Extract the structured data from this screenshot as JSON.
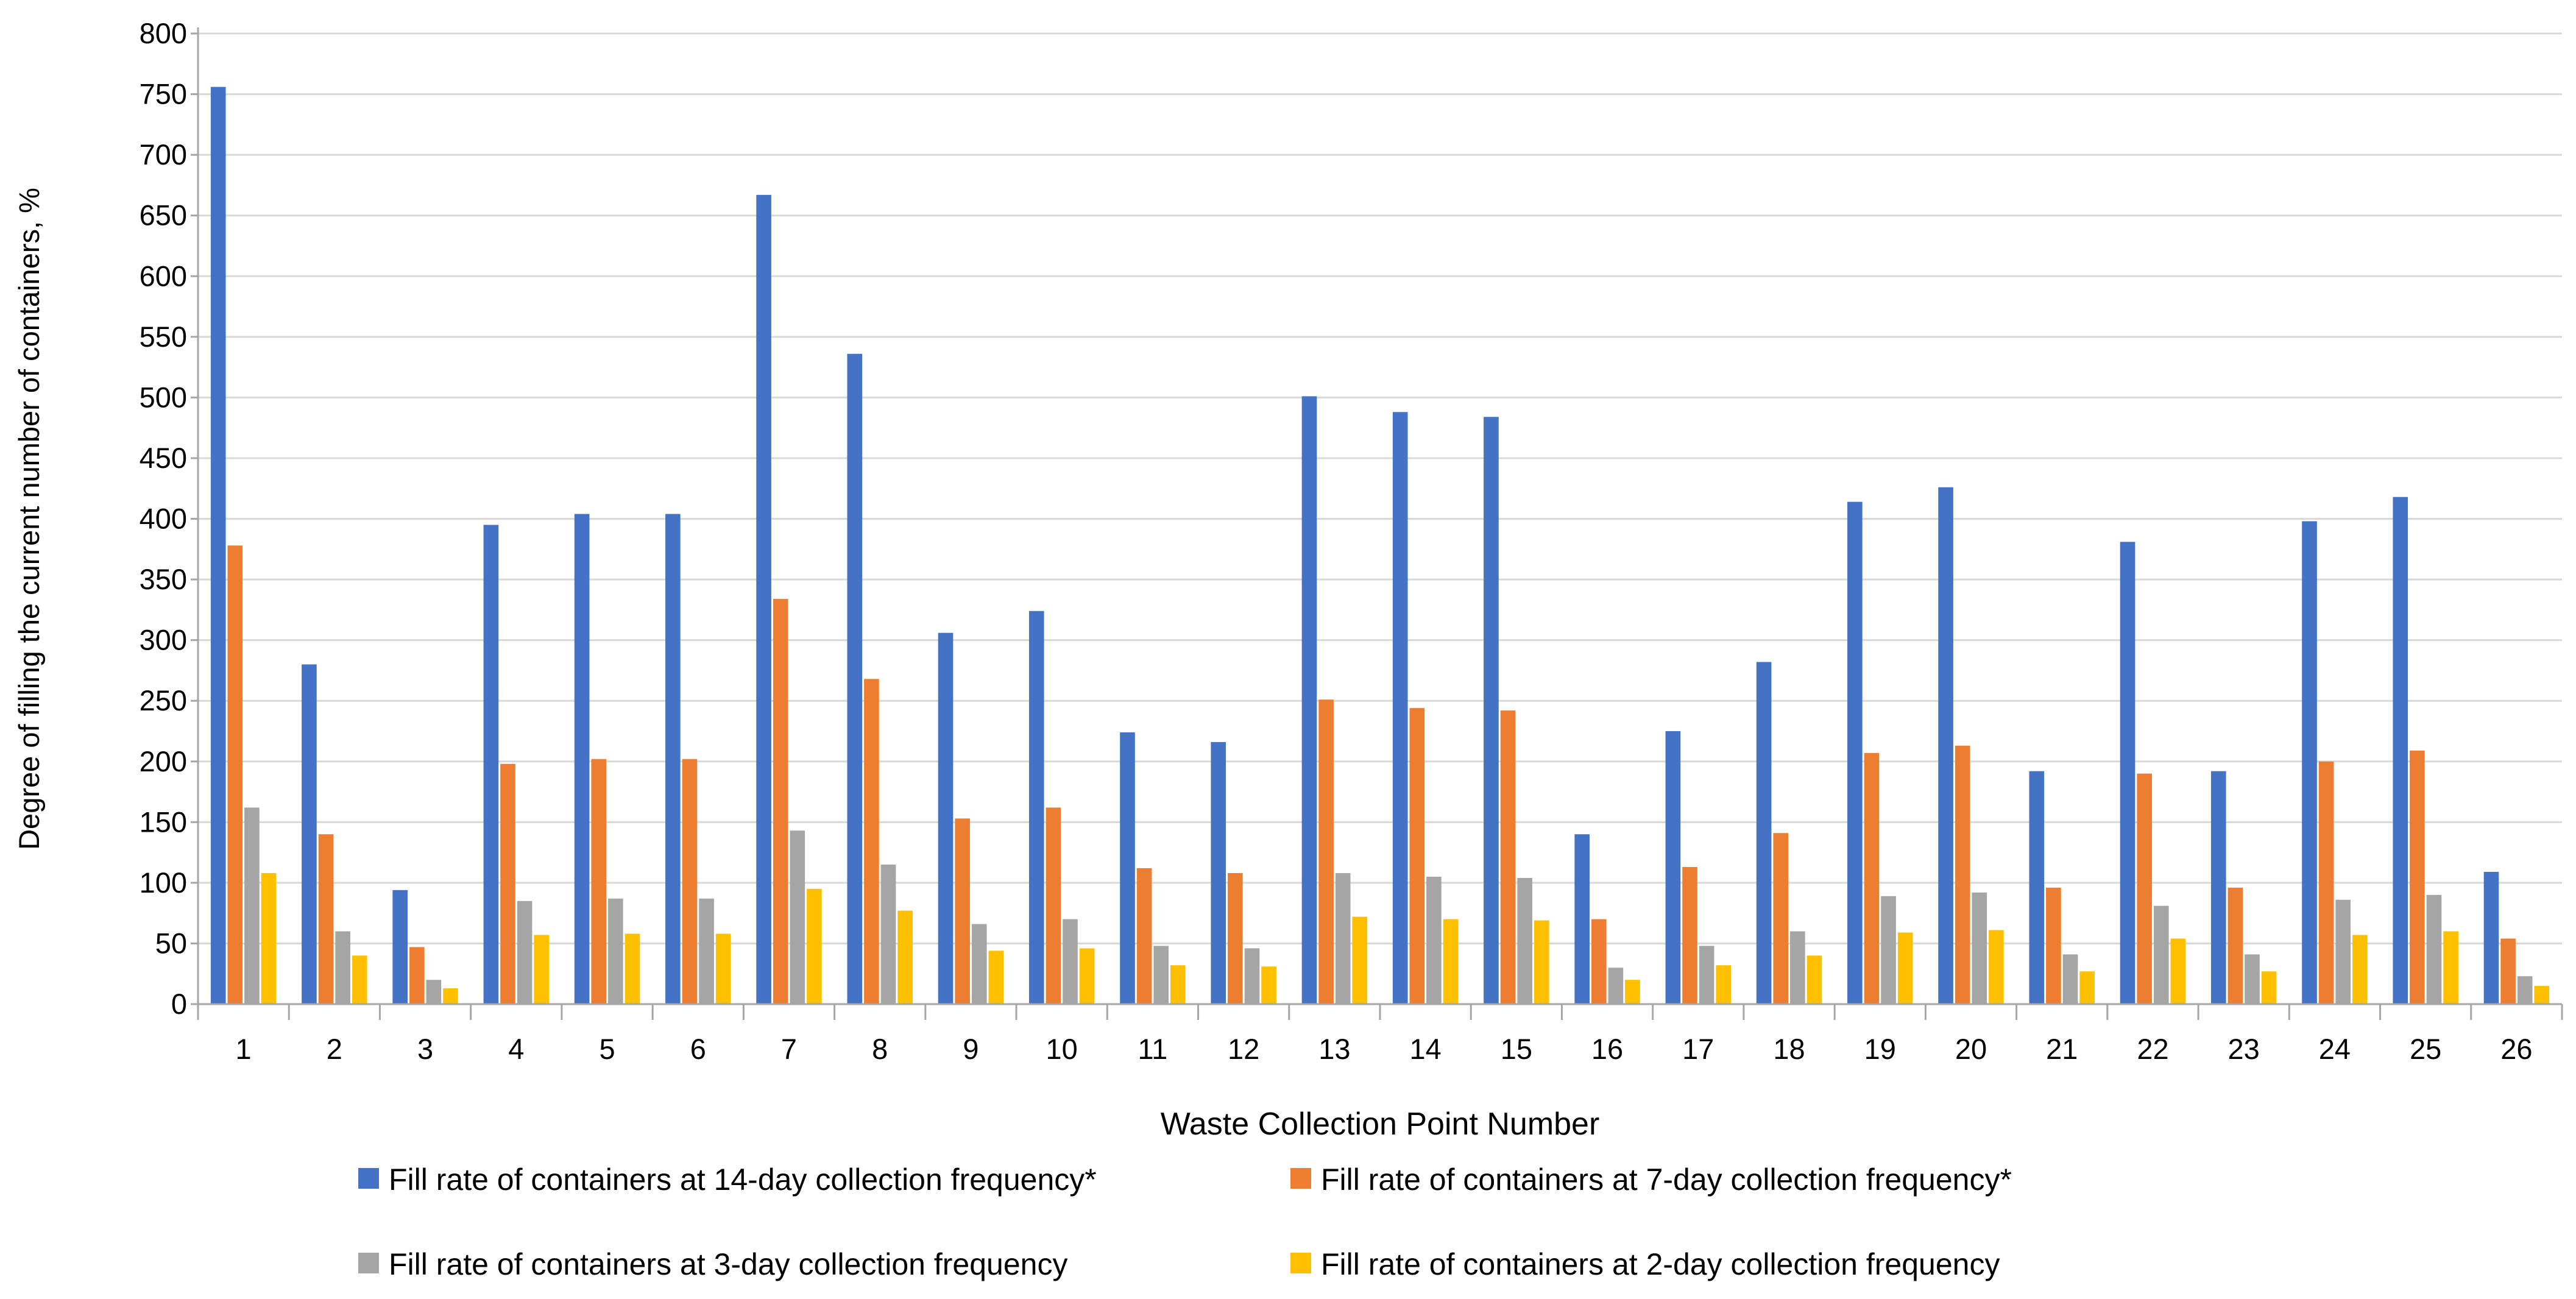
{
  "chart_data": {
    "type": "bar",
    "title": "",
    "xlabel": "Waste Collection Point Number",
    "ylabel": "Degree of filling the current number of containers, %",
    "ylim": [
      0,
      800
    ],
    "yticks": [
      0,
      50,
      100,
      150,
      200,
      250,
      300,
      350,
      400,
      450,
      500,
      550,
      600,
      650,
      700,
      750,
      800
    ],
    "grid": true,
    "legend_position": "bottom",
    "categories": [
      "1",
      "2",
      "3",
      "4",
      "5",
      "6",
      "7",
      "8",
      "9",
      "10",
      "11",
      "12",
      "13",
      "14",
      "15",
      "16",
      "17",
      "18",
      "19",
      "20",
      "21",
      "22",
      "23",
      "24",
      "25",
      "26"
    ],
    "series": [
      {
        "name": "Fill rate of containers at 14-day collection frequency*",
        "color": "#4472C4",
        "values": [
          756,
          280,
          94,
          395,
          404,
          404,
          667,
          536,
          306,
          324,
          224,
          216,
          501,
          488,
          484,
          140,
          225,
          282,
          414,
          426,
          192,
          381,
          192,
          398,
          418,
          109
        ]
      },
      {
        "name": "Fill rate of containers at 7-day collection frequency*",
        "color": "#ED7D31",
        "values": [
          378,
          140,
          47,
          198,
          202,
          202,
          334,
          268,
          153,
          162,
          112,
          108,
          251,
          244,
          242,
          70,
          113,
          141,
          207,
          213,
          96,
          190,
          96,
          200,
          209,
          54
        ]
      },
      {
        "name": "Fill rate of containers at 3-day collection frequency",
        "color": "#A5A5A5",
        "values": [
          162,
          60,
          20,
          85,
          87,
          87,
          143,
          115,
          66,
          70,
          48,
          46,
          108,
          105,
          104,
          30,
          48,
          60,
          89,
          92,
          41,
          81,
          41,
          86,
          90,
          23
        ]
      },
      {
        "name": "Fill rate of containers at 2-day collection frequency",
        "color": "#FFC000",
        "values": [
          108,
          40,
          13,
          57,
          58,
          58,
          95,
          77,
          44,
          46,
          32,
          31,
          72,
          70,
          69,
          20,
          32,
          40,
          59,
          61,
          27,
          54,
          27,
          57,
          60,
          15
        ]
      }
    ]
  }
}
